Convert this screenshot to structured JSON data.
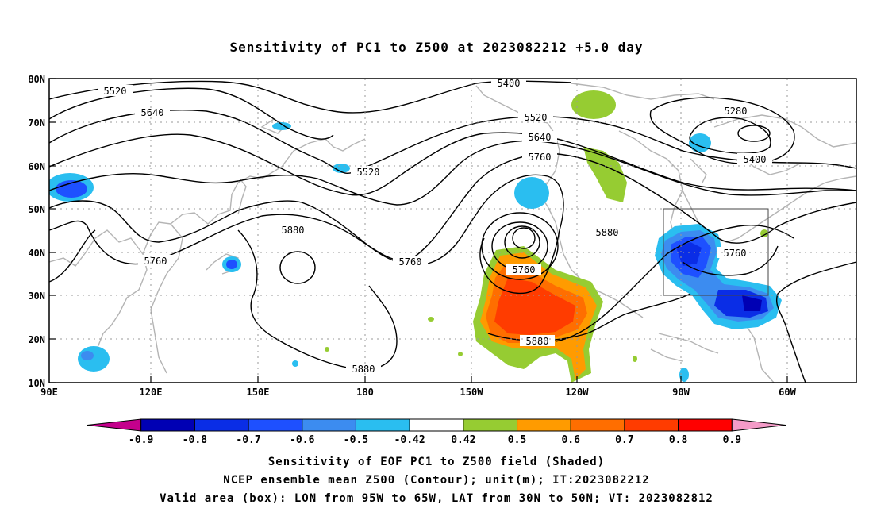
{
  "title": "Sensitivity of PC1 to Z500 at 2023082212 +5.0 day",
  "lon_ticks": [
    "90E",
    "120E",
    "150E",
    "180",
    "150W",
    "120W",
    "90W",
    "60W"
  ],
  "lat_ticks": [
    "80N",
    "70N",
    "60N",
    "50N",
    "40N",
    "30N",
    "20N",
    "10N"
  ],
  "contour_labels": [
    "5400",
    "5520",
    "5640",
    "5280",
    "5520",
    "5640",
    "5760",
    "5400",
    "5520",
    "5880",
    "5760",
    "5760",
    "5880",
    "5760",
    "5880",
    "5760",
    "5880"
  ],
  "colorbar": {
    "labels": [
      "-0.9",
      "-0.8",
      "-0.7",
      "-0.6",
      "-0.5",
      "-0.42",
      "0.42",
      "0.5",
      "0.6",
      "0.7",
      "0.8",
      "0.9"
    ],
    "colors": [
      "#c4008c",
      "#0000b4",
      "#0a2de6",
      "#1e50ff",
      "#3c8cf0",
      "#2abef0",
      "#ffffff",
      "#96cc32",
      "#ff9b00",
      "#ff6e00",
      "#ff3c00",
      "#ff0000",
      "#f49bc8"
    ]
  },
  "box": {
    "lon_from": "95W",
    "lon_to": "65W",
    "lat_from": "30N",
    "lat_to": "50N"
  },
  "captions": [
    "Sensitivity of EOF PC1 to Z500 field (Shaded)",
    "NCEP ensemble mean Z500 (Contour); unit(m); IT:2023082212",
    "Valid area (box): LON from 95W to 65W, LAT from 30N to 50N; VT: 2023082812"
  ]
}
